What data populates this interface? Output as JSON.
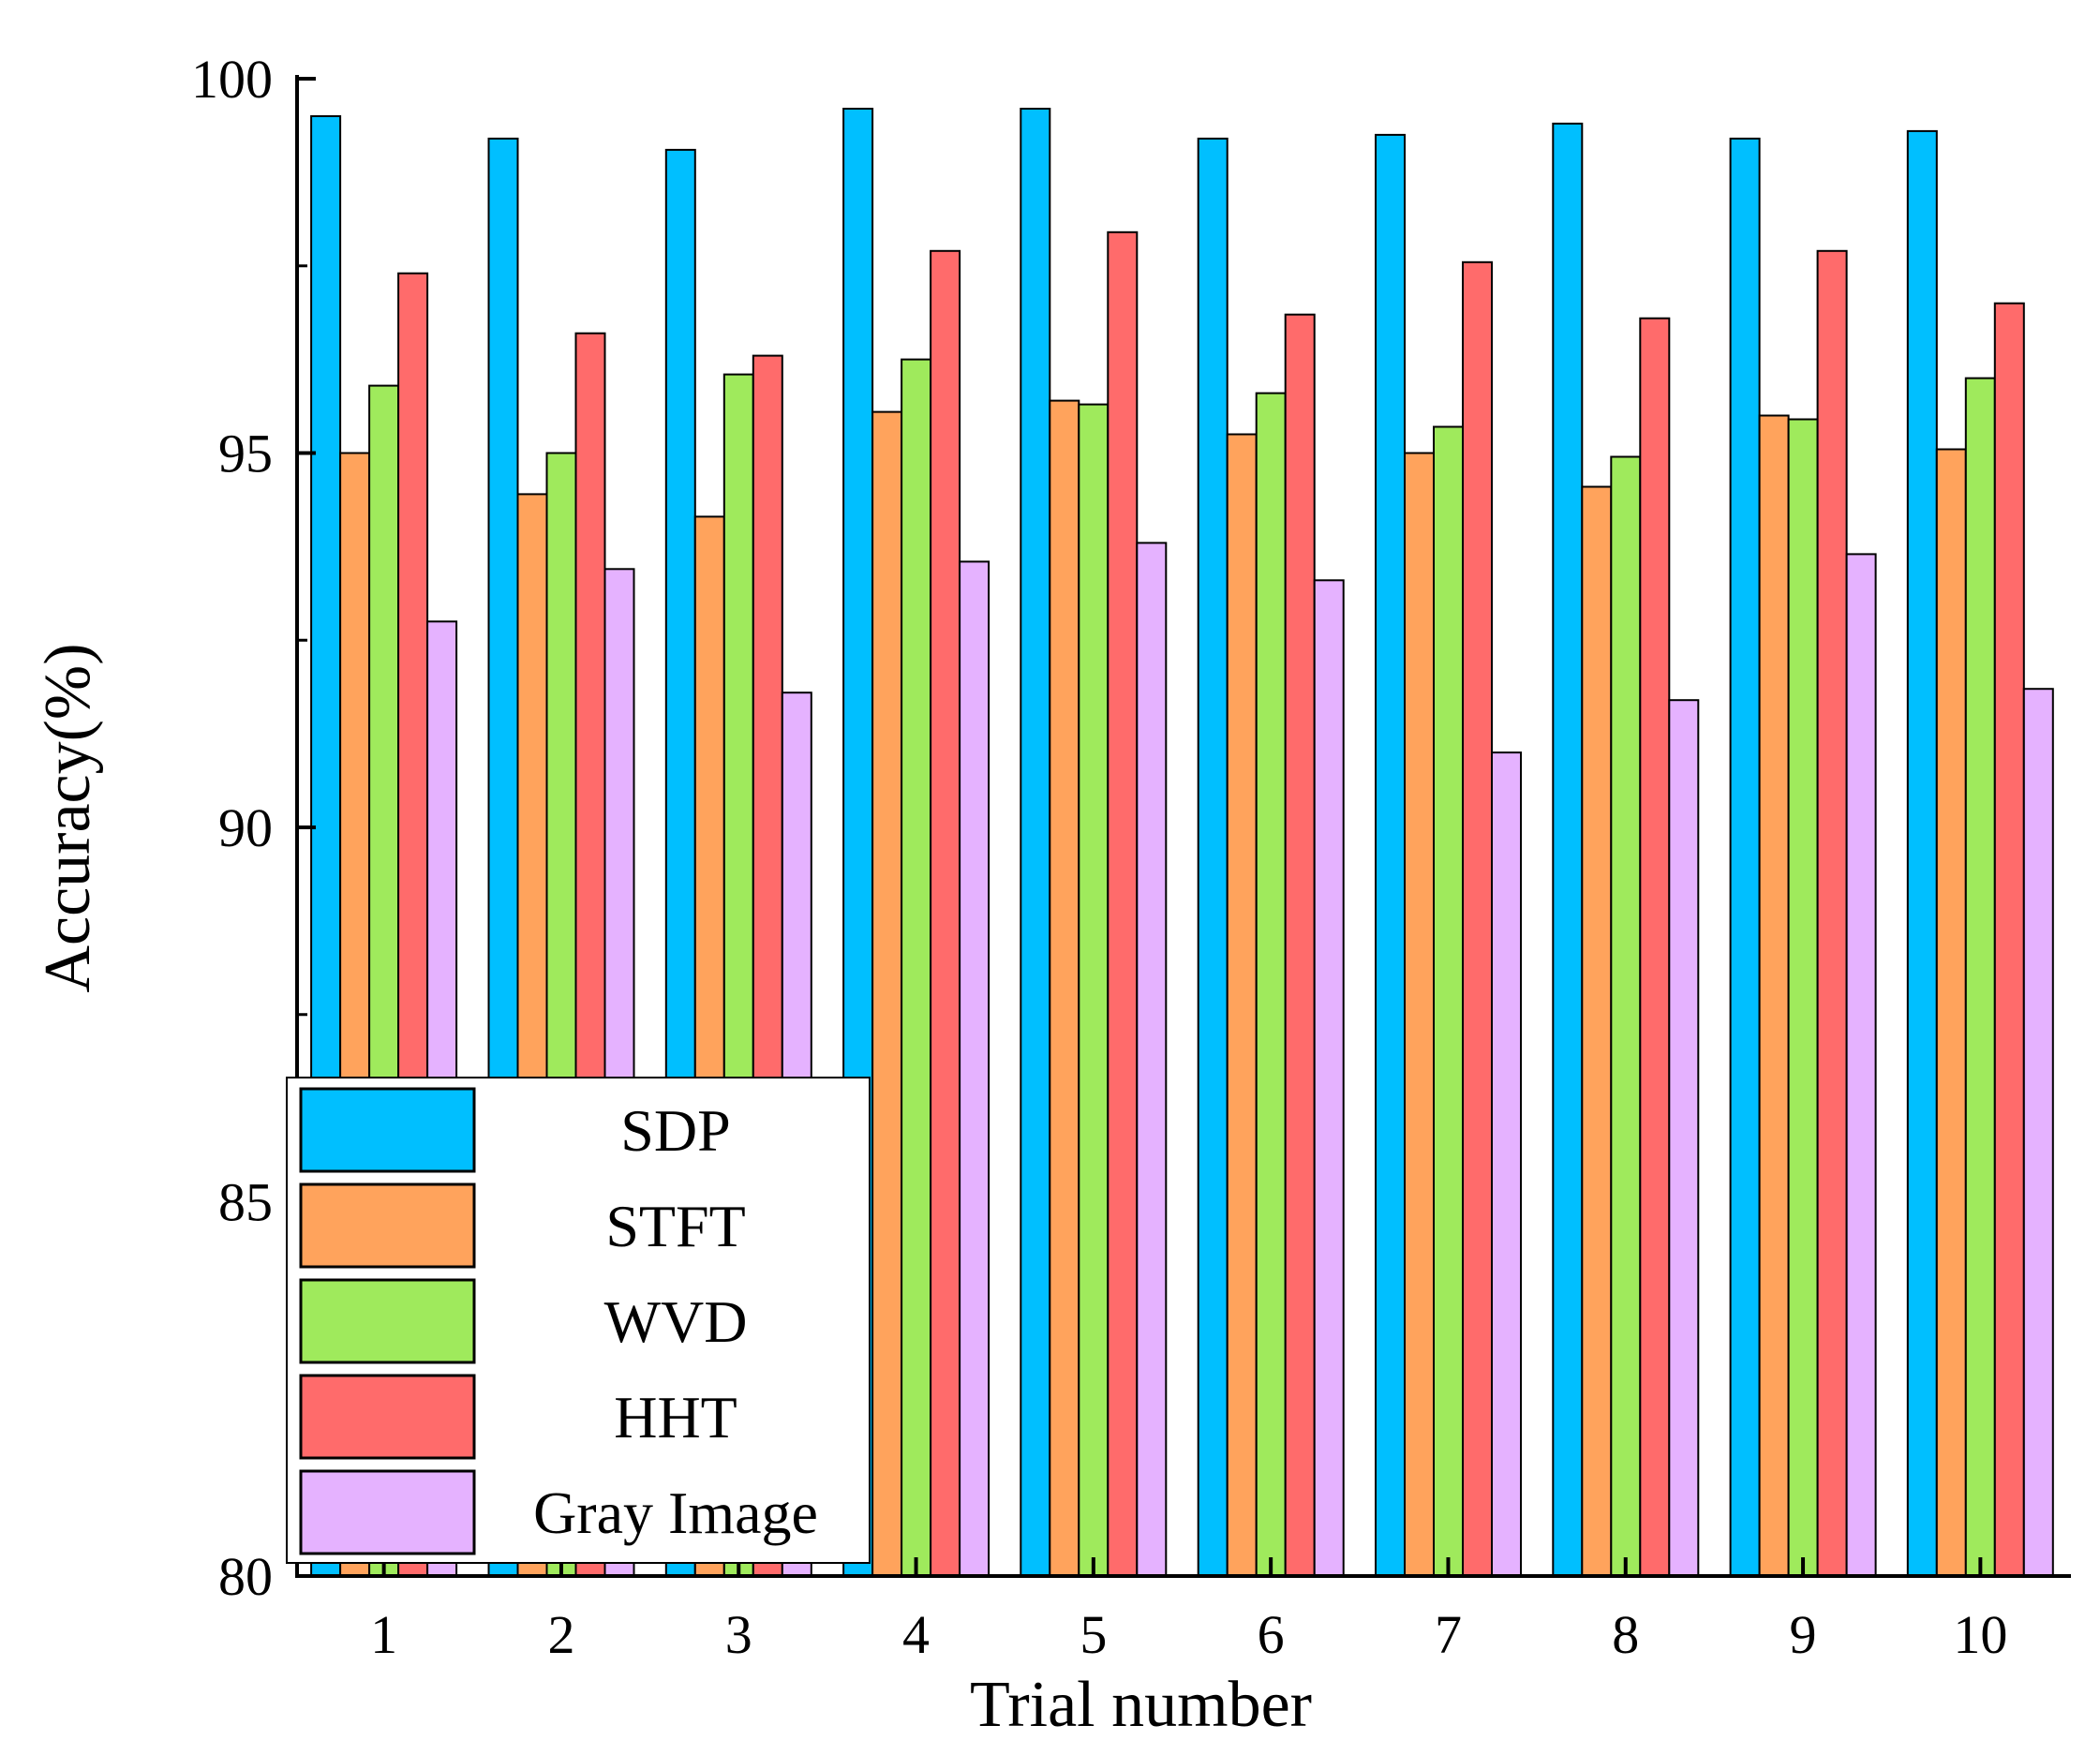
{
  "chart_data": {
    "type": "bar",
    "title": "",
    "xlabel": "Trial number",
    "ylabel": "Accuracy(%)",
    "ylim": [
      80,
      100
    ],
    "yticks": [
      80,
      85,
      90,
      95,
      100
    ],
    "ytick_labels": [
      "80",
      "85",
      "90",
      "95",
      "100"
    ],
    "categories": [
      "1",
      "2",
      "3",
      "4",
      "5",
      "6",
      "7",
      "8",
      "9",
      "10"
    ],
    "series": [
      {
        "name": "SDP",
        "color": "#00BFFF",
        "values": [
          99.5,
          99.2,
          99.05,
          99.6,
          99.6,
          99.2,
          99.25,
          99.4,
          99.2,
          99.3
        ]
      },
      {
        "name": "STFT",
        "color": "#FFA35C",
        "values": [
          95.0,
          94.45,
          94.15,
          95.55,
          95.7,
          95.25,
          95.0,
          94.55,
          95.5,
          95.05
        ]
      },
      {
        "name": "WVD",
        "color": "#9FEA5C",
        "values": [
          95.9,
          95.0,
          96.05,
          96.25,
          95.65,
          95.8,
          95.35,
          94.95,
          95.45,
          96.0
        ]
      },
      {
        "name": "HHT",
        "color": "#FF6B6B",
        "values": [
          97.4,
          96.6,
          96.3,
          97.7,
          97.95,
          96.85,
          97.55,
          96.8,
          97.7,
          97.0
        ]
      },
      {
        "name": "Gray Image",
        "color": "#E5B2FF",
        "values": [
          92.75,
          93.45,
          91.8,
          93.55,
          93.8,
          93.3,
          91.0,
          91.7,
          93.65,
          91.85
        ]
      }
    ],
    "legend_position": "bottom-left",
    "grid": false
  }
}
